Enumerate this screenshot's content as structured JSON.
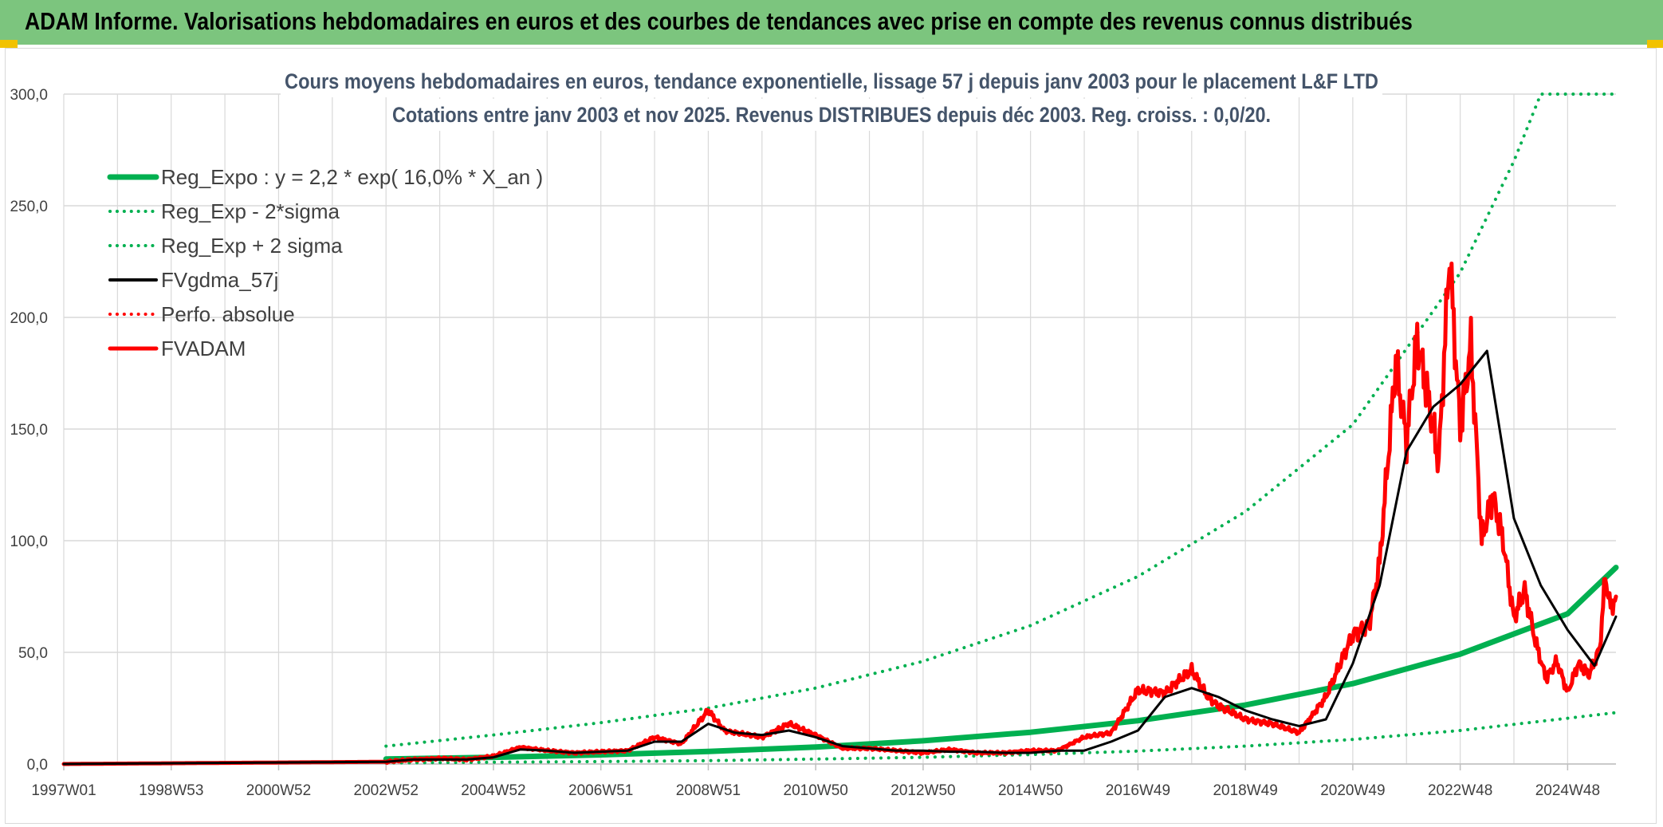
{
  "header": {
    "title": "ADAM Informe. Valorisations hebdomadaires en euros et des courbes de tendances avec prise en compte des revenus connus distribués"
  },
  "chart_data": {
    "type": "line",
    "title": "Cours moyens hebdomadaires en euros, tendance exponentielle, lissage 57 j depuis janv 2003 pour le placement L&F LTD",
    "subtitle": "Cotations entre janv 2003 et nov 2025. Revenus DISTRIBUES depuis déc 2003. Reg. croiss. : 0,0/20.",
    "xlabel": "",
    "ylabel": "",
    "ylim": [
      0,
      300
    ],
    "yticks": [
      "0,0",
      "50,0",
      "100,0",
      "150,0",
      "200,0",
      "250,0",
      "300,0"
    ],
    "xlim": [
      1997.0,
      2025.9
    ],
    "xticks": [
      {
        "label": "1997W01",
        "x": 1997.0
      },
      {
        "label": "1998W53",
        "x": 1999.0
      },
      {
        "label": "2000W52",
        "x": 2001.0
      },
      {
        "label": "2002W52",
        "x": 2003.0
      },
      {
        "label": "2004W52",
        "x": 2005.0
      },
      {
        "label": "2006W51",
        "x": 2007.0
      },
      {
        "label": "2008W51",
        "x": 2009.0
      },
      {
        "label": "2010W50",
        "x": 2011.0
      },
      {
        "label": "2012W50",
        "x": 2013.0
      },
      {
        "label": "2014W50",
        "x": 2015.0
      },
      {
        "label": "2016W49",
        "x": 2017.0
      },
      {
        "label": "2018W49",
        "x": 2019.0
      },
      {
        "label": "2020W49",
        "x": 2021.0
      },
      {
        "label": "2022W48",
        "x": 2023.0
      },
      {
        "label": "2024W48",
        "x": 2025.0
      }
    ],
    "series": [
      {
        "name": "Reg_Expo : y = 2,2 * exp( 16,0% *  X_an )",
        "color": "#00b050",
        "style": "solid",
        "width": 7,
        "x": [
          2003.0,
          2005,
          2007,
          2009,
          2011,
          2013,
          2015,
          2017,
          2019,
          2021,
          2023,
          2025,
          2025.9
        ],
        "y": [
          2.2,
          3.0,
          4.1,
          5.6,
          7.6,
          10.4,
          14.2,
          19.4,
          26.4,
          36.0,
          49.2,
          67.3,
          88.0
        ]
      },
      {
        "name": "Reg_Exp - 2*sigma",
        "color": "#00b050",
        "style": "dotted",
        "width": 4,
        "x": [
          2003.0,
          2005,
          2007,
          2009,
          2011,
          2013,
          2015,
          2017,
          2019,
          2021,
          2023,
          2025,
          2025.9
        ],
        "y": [
          0.5,
          0.8,
          1.1,
          1.5,
          2.2,
          3.0,
          4.2,
          5.8,
          8.0,
          11.0,
          15.0,
          20.5,
          23.0
        ]
      },
      {
        "name": "Reg_Exp + 2 sigma",
        "color": "#00b050",
        "style": "dotted",
        "width": 4,
        "x": [
          2003.0,
          2005,
          2007,
          2009,
          2011,
          2013,
          2015,
          2017,
          2019,
          2021,
          2023,
          2024.0,
          2024.5,
          2025.9
        ],
        "y": [
          8.0,
          13.0,
          18.5,
          25.0,
          34.0,
          46.0,
          62.0,
          84.0,
          113.0,
          152.0,
          220.0,
          270.0,
          300.0,
          300.0
        ]
      },
      {
        "name": "FVgdma_57j",
        "color": "#000000",
        "style": "solid",
        "width": 3,
        "x": [
          1997.0,
          2003.0,
          2003.5,
          2004,
          2004.5,
          2005,
          2005.5,
          2006,
          2006.5,
          2007,
          2007.5,
          2008,
          2008.5,
          2009,
          2009.5,
          2010,
          2010.5,
          2011,
          2011.5,
          2012,
          2012.5,
          2013,
          2013.5,
          2014,
          2014.5,
          2015,
          2015.5,
          2016,
          2016.5,
          2017,
          2017.5,
          2018,
          2018.5,
          2019,
          2019.5,
          2020,
          2020.5,
          2021,
          2021.5,
          2022,
          2022.5,
          2023,
          2023.5,
          2024,
          2024.5,
          2025,
          2025.5,
          2025.9
        ],
        "y": [
          0.0,
          1.0,
          2.0,
          2.0,
          2.0,
          3.0,
          6.5,
          6.0,
          5.0,
          5.5,
          6.0,
          10.0,
          10.0,
          18.0,
          14.0,
          13.0,
          15.0,
          12.0,
          8.0,
          7.0,
          6.0,
          6.0,
          5.5,
          5.5,
          5.0,
          5.0,
          6.0,
          6.0,
          10.0,
          15.0,
          30.0,
          34.0,
          30.0,
          24.0,
          20.0,
          17.0,
          20.0,
          45.0,
          80.0,
          140.0,
          160.0,
          170.0,
          185.0,
          110.0,
          80.0,
          60.0,
          44.0,
          66.0
        ]
      },
      {
        "name": "Perfo. absolue",
        "color": "#ff0000",
        "style": "dotted",
        "width": 3,
        "x": [],
        "y": []
      },
      {
        "name": "FVADAM",
        "color": "#ff0000",
        "style": "solid",
        "width": 5,
        "x": [
          1997.0,
          2003.0,
          2003.5,
          2004,
          2004.5,
          2005,
          2005.5,
          2006,
          2006.5,
          2007,
          2007.5,
          2008,
          2008.5,
          2009,
          2009.3,
          2009.5,
          2010,
          2010.5,
          2011,
          2011.5,
          2012,
          2012.5,
          2013,
          2013.5,
          2014,
          2014.5,
          2015,
          2015.5,
          2016,
          2016.5,
          2017,
          2017.5,
          2018,
          2018.3,
          2018.5,
          2019,
          2019.5,
          2020,
          2020.5,
          2021,
          2021.3,
          2021.5,
          2021.8,
          2022,
          2022.2,
          2022.4,
          2022.6,
          2022.8,
          2023.0,
          2023.2,
          2023.4,
          2023.6,
          2023.8,
          2024.0,
          2024.2,
          2024.4,
          2024.6,
          2024.8,
          2025.0,
          2025.2,
          2025.4,
          2025.6,
          2025.7,
          2025.8,
          2025.9
        ],
        "y": [
          0.0,
          1.0,
          2.0,
          2.5,
          2.0,
          3.5,
          7.5,
          6.0,
          5.0,
          5.5,
          6.0,
          12.0,
          9.0,
          24.0,
          15.0,
          14.0,
          12.0,
          18.0,
          13.0,
          7.0,
          7.0,
          6.0,
          5.0,
          6.5,
          5.0,
          5.0,
          6.0,
          6.0,
          12.0,
          14.0,
          33.0,
          32.0,
          42.0,
          30.0,
          26.0,
          20.0,
          18.0,
          14.0,
          30.0,
          58.0,
          62.0,
          90.0,
          180.0,
          145.0,
          190.0,
          165.0,
          135.0,
          228.0,
          150.0,
          188.0,
          100.0,
          120.0,
          100.0,
          65.0,
          78.0,
          55.0,
          38.0,
          46.0,
          32.0,
          45.0,
          40.0,
          52.0,
          84.0,
          70.0,
          75.0
        ]
      }
    ],
    "legend": "top-left"
  }
}
